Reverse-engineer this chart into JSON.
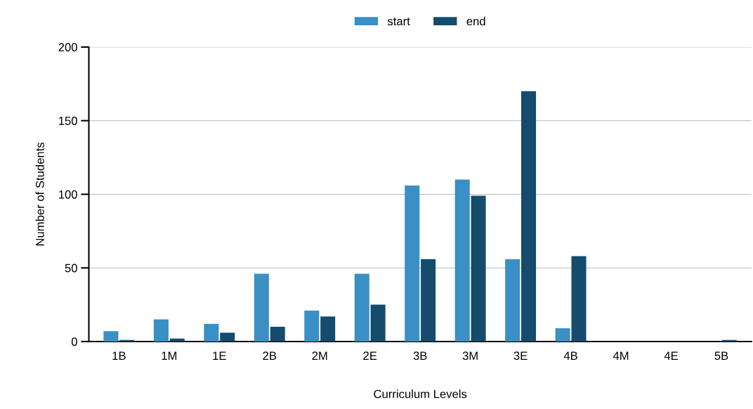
{
  "chart_data": {
    "type": "bar",
    "xlabel": "Curriculum Levels",
    "ylabel": "Number of Students",
    "categories": [
      "1B",
      "1M",
      "1E",
      "2B",
      "2M",
      "2E",
      "3B",
      "3M",
      "3E",
      "4B",
      "4M",
      "4E",
      "5B"
    ],
    "series": [
      {
        "name": "start",
        "color": "#3a8fc4",
        "values": [
          7,
          15,
          12,
          46,
          21,
          46,
          106,
          110,
          56,
          9,
          0,
          0,
          0
        ]
      },
      {
        "name": "end",
        "color": "#154b6c",
        "values": [
          1,
          2,
          6,
          10,
          17,
          25,
          56,
          99,
          170,
          58,
          0,
          0,
          1
        ]
      }
    ],
    "ylim": [
      0,
      200
    ],
    "yticks": [
      0,
      50,
      100,
      150,
      200
    ],
    "grid": "y",
    "legend": "top"
  }
}
